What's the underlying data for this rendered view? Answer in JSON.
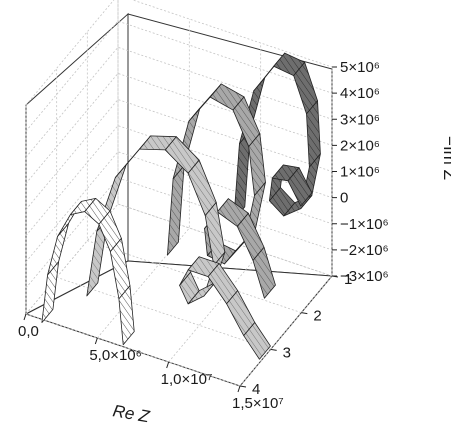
{
  "chart_data": {
    "type": "3d-ribbon",
    "title": "",
    "xlabel": "Re Z",
    "ylabel": "",
    "zlabel": "−Im Z",
    "x_ticks": [
      "0,0",
      "5,0×10⁶",
      "1,0×10⁷",
      "1,5×10⁷"
    ],
    "y_ticks": [
      "1",
      "2",
      "3",
      "4"
    ],
    "z_ticks": [
      "5×10⁶",
      "4×10⁶",
      "3×10⁶",
      "2×10⁶",
      "1×10⁶",
      "0",
      "−1×10⁶",
      "−2×10⁶",
      "−3×10⁶"
    ],
    "xlim": [
      0,
      15000000
    ],
    "ylim": [
      1,
      4
    ],
    "zlim": [
      -3000000,
      5000000
    ],
    "grid": true,
    "series": [
      {
        "depth": 4,
        "fill": "#ffffff",
        "stripe": "#555555",
        "points": [
          [
            1500000,
            -2800000
          ],
          [
            1900000,
            -900000
          ],
          [
            2600000,
            700000
          ],
          [
            3500000,
            1700000
          ],
          [
            4500000,
            2000000
          ],
          [
            5500000,
            1700000
          ],
          [
            6300000,
            800000
          ],
          [
            6900000,
            -900000
          ],
          [
            7200000,
            -2600000
          ]
        ]
      },
      {
        "depth": 3,
        "fill": "#c8c8c8",
        "stripe": "#777777",
        "points": [
          [
            2500000,
            -3000000
          ],
          [
            3200000,
            -400000
          ],
          [
            4500000,
            1900000
          ],
          [
            6200000,
            3300000
          ],
          [
            8000000,
            3600000
          ],
          [
            9600000,
            3000000
          ],
          [
            10800000,
            1600000
          ],
          [
            11400000,
            -200000
          ],
          [
            10700000,
            -1500000
          ],
          [
            9600000,
            -2000000
          ],
          [
            9000000,
            -1400000
          ],
          [
            9600000,
            -700000
          ],
          [
            11000000,
            -700000
          ],
          [
            12300000,
            -1500000
          ],
          [
            13500000,
            -2500000
          ],
          [
            14600000,
            -3200000
          ]
        ]
      },
      {
        "depth": 2,
        "fill": "#a8a8a8",
        "stripe": "#5a5a5a",
        "points": [
          [
            6000000,
            -2200000
          ],
          [
            6400000,
            800000
          ],
          [
            7500000,
            3200000
          ],
          [
            9000000,
            4400000
          ],
          [
            10600000,
            4200000
          ],
          [
            11700000,
            3000000
          ],
          [
            12100000,
            1200000
          ],
          [
            11400000,
            -700000
          ],
          [
            10000000,
            -1800000
          ],
          [
            8800000,
            -1700000
          ],
          [
            8600000,
            -700000
          ],
          [
            9500000,
            100000
          ],
          [
            10900000,
            -200000
          ],
          [
            12000000,
            -1300000
          ],
          [
            12800000,
            -2600000
          ]
        ]
      },
      {
        "depth": 1,
        "fill": "#6e6e6e",
        "stripe": "#303030",
        "points": [
          [
            8500000,
            -1800000
          ],
          [
            8900000,
            1200000
          ],
          [
            9900000,
            3400000
          ],
          [
            11300000,
            4600000
          ],
          [
            12700000,
            4500000
          ],
          [
            13600000,
            3200000
          ],
          [
            13800000,
            1200000
          ],
          [
            13200000,
            -500000
          ],
          [
            12000000,
            -1000000
          ],
          [
            11000000,
            -600000
          ],
          [
            11200000,
            300000
          ],
          [
            12300000,
            400000
          ],
          [
            13200000,
            -400000
          ]
        ]
      }
    ]
  }
}
